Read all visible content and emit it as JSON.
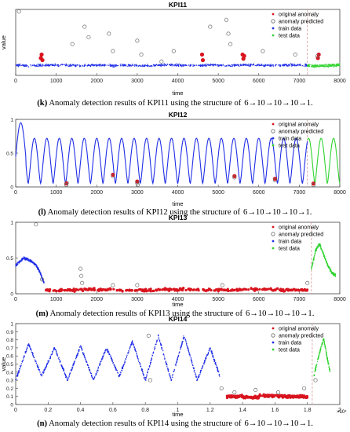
{
  "colors": {
    "train": "#1f2ee6",
    "test": "#2fd32f",
    "anomaly": "#d8141e",
    "predicted": "#6b6b6b",
    "split_line": "#d49a9a",
    "axis": "#444444"
  },
  "legend_labels": {
    "original": "original anomaly",
    "predicted": "anomaly predicted",
    "train": "train data",
    "test": "test data"
  },
  "captions": [
    {
      "tag": "(k)",
      "text": "Anomaly detection results of KPI11 using the structure of",
      "arch": "6→10→10→10→1."
    },
    {
      "tag": "(l)",
      "text": "Anomaly detection results of KPI12 using the structure of",
      "arch": "6→10→10→10→1."
    },
    {
      "tag": "(m)",
      "text": "Anomaly detection results of KPI13 using the structure of",
      "arch": "6→10→10→10→1."
    },
    {
      "tag": "(n)",
      "text": "Anomaly detection results of KPI14 using the structure of",
      "arch": "6→10→10→10→1."
    }
  ],
  "chart_data": [
    {
      "type": "scatter",
      "title": "KPI11",
      "xlabel": "time",
      "ylabel": "value",
      "xlim": [
        0,
        8000
      ],
      "ylim": [
        0,
        0.95
      ],
      "xticks": [
        "0",
        "1000",
        "2000",
        "3000",
        "4000",
        "5000",
        "6000",
        "7000",
        "8000"
      ],
      "yticks": [],
      "split_x": 7200,
      "legend": [
        "original anomaly",
        "anomaly predicted",
        "train data",
        "test data"
      ],
      "legend_position": "top-right",
      "series": [
        {
          "name": "train data",
          "x": [
            0,
            400,
            800,
            1200,
            1600,
            2000,
            2400,
            2800,
            3200,
            3600,
            4000,
            4400,
            4800,
            5200,
            5600,
            6000,
            6400,
            6800,
            7200
          ],
          "y": [
            0.15,
            0.14,
            0.15,
            0.15,
            0.14,
            0.15,
            0.14,
            0.15,
            0.14,
            0.15,
            0.15,
            0.14,
            0.15,
            0.14,
            0.15,
            0.15,
            0.14,
            0.15,
            0.15
          ]
        },
        {
          "name": "test data",
          "x": [
            7200,
            7400,
            7600,
            7800,
            8000
          ],
          "y": [
            0.14,
            0.13,
            0.14,
            0.14,
            0.15
          ]
        },
        {
          "name": "original anomaly",
          "x": [
            620,
            640,
            660,
            4600,
            4620,
            5600,
            5620,
            5640,
            7460,
            7480
          ],
          "y": [
            0.25,
            0.3,
            0.22,
            0.3,
            0.22,
            0.3,
            0.24,
            0.28,
            0.25,
            0.3
          ]
        },
        {
          "name": "anomaly predicted",
          "x": [
            80,
            1400,
            1700,
            1800,
            2300,
            2400,
            3000,
            3100,
            3600,
            3900,
            4800,
            5200,
            5250,
            5300,
            6100,
            6900,
            7450
          ],
          "y": [
            0.92,
            0.45,
            0.7,
            0.55,
            0.6,
            0.35,
            0.5,
            0.3,
            0.2,
            0.35,
            0.7,
            0.8,
            0.6,
            0.45,
            0.35,
            0.3,
            0.28
          ]
        }
      ]
    },
    {
      "type": "line",
      "title": "KPI12",
      "xlabel": "time",
      "ylabel": "",
      "xlim": [
        0,
        8000
      ],
      "ylim": [
        0,
        1
      ],
      "xticks": [
        "0",
        "1000",
        "2000",
        "3000",
        "4000",
        "5000",
        "6000",
        "7000",
        "8000"
      ],
      "yticks": [
        "0",
        "0.5",
        "1"
      ],
      "split_x": 7200,
      "legend": [
        "original anomaly",
        "anomaly predicted",
        "train data",
        "test data"
      ],
      "legend_position": "top-right",
      "periods": 26,
      "peak": 0.72,
      "trough": 0.05,
      "series": [
        {
          "name": "original anomaly",
          "x": [
            1250,
            2400,
            3000,
            5400,
            6400,
            7350
          ],
          "y": [
            0.05,
            0.18,
            0.08,
            0.16,
            0.12,
            0.05
          ]
        },
        {
          "name": "anomaly predicted",
          "x": [
            1250,
            1260,
            2400,
            3000,
            3010,
            5400,
            6400,
            7350
          ],
          "y": [
            0.03,
            0.06,
            0.16,
            0.06,
            0.03,
            0.14,
            0.1,
            0.03
          ]
        }
      ]
    },
    {
      "type": "scatter",
      "title": "KPI13",
      "xlabel": "time",
      "ylabel": "",
      "xlim": [
        0,
        8000
      ],
      "ylim": [
        0,
        1
      ],
      "xticks": [
        "0",
        "1000",
        "2000",
        "3000",
        "4000",
        "5000",
        "6000",
        "7000",
        "8000"
      ],
      "yticks": [
        "0",
        "0.5",
        "1"
      ],
      "split_x": 7300,
      "legend": [
        "original anomaly",
        "anomaly predicted",
        "train data",
        "test data"
      ],
      "legend_position": "top-right",
      "series": [
        {
          "name": "train data",
          "x": [
            0,
            100,
            200,
            300,
            400,
            500,
            600,
            700
          ],
          "y": [
            0.4,
            0.45,
            0.5,
            0.48,
            0.45,
            0.4,
            0.3,
            0.15
          ]
        },
        {
          "name": "test data",
          "x": [
            7300,
            7400,
            7500,
            7600,
            7700,
            7800,
            7900
          ],
          "y": [
            0.35,
            0.6,
            0.7,
            0.55,
            0.4,
            0.3,
            0.25
          ]
        },
        {
          "name": "original anomaly",
          "x": [
            700,
            1500,
            2500,
            3500,
            4500,
            5500,
            6500,
            7200
          ],
          "y": [
            0.05,
            0.06,
            0.05,
            0.06,
            0.05,
            0.06,
            0.05,
            0.06
          ]
        },
        {
          "name": "anomaly predicted",
          "x": [
            500,
            650,
            1600,
            1620,
            1640,
            2400,
            3000,
            5100,
            7200
          ],
          "y": [
            0.97,
            0.2,
            0.35,
            0.25,
            0.15,
            0.12,
            0.12,
            0.12,
            0.15
          ]
        }
      ]
    },
    {
      "type": "scatter",
      "title": "KPI14",
      "xlabel": "time",
      "ylabel": "value",
      "xlim": [
        0,
        2
      ],
      "ylim": [
        0,
        1
      ],
      "x_multiplier": "×10⁴",
      "xticks": [
        "0",
        "0.2",
        "0.4",
        "0.6",
        "0.8",
        "1",
        "1.2",
        "1.4",
        "1.6",
        "1.8",
        "2"
      ],
      "yticks": [
        "0",
        "0.1",
        "0.2",
        "0.3",
        "0.4",
        "0.5",
        "0.6",
        "0.7",
        "0.8",
        "0.9",
        "1"
      ],
      "split_x": 1.83,
      "legend": [
        "original anomaly",
        "anomaly predicted",
        "train data",
        "test data"
      ],
      "legend_position": "top-right",
      "series": [
        {
          "name": "train data",
          "x": [
            0,
            0.08,
            0.16,
            0.24,
            0.32,
            0.4,
            0.48,
            0.56,
            0.64,
            0.72,
            0.8,
            0.88,
            0.96,
            1.04,
            1.12,
            1.2,
            1.26
          ],
          "y": [
            0.3,
            0.75,
            0.35,
            0.7,
            0.3,
            0.72,
            0.3,
            0.7,
            0.35,
            0.78,
            0.3,
            0.85,
            0.3,
            0.85,
            0.3,
            0.7,
            0.35
          ]
        },
        {
          "name": "test data",
          "x": [
            1.84,
            1.87,
            1.9,
            1.92,
            1.94
          ],
          "y": [
            0.35,
            0.6,
            0.82,
            0.6,
            0.4
          ]
        },
        {
          "name": "original anomaly",
          "x": [
            1.3,
            1.4,
            1.5,
            1.6,
            1.7,
            1.8
          ],
          "y": [
            0.1,
            0.09,
            0.11,
            0.1,
            0.1,
            0.11
          ]
        },
        {
          "name": "anomaly predicted",
          "x": [
            0.82,
            0.83,
            1.27,
            1.35,
            1.48,
            1.62,
            1.78,
            1.85
          ],
          "y": [
            0.85,
            0.3,
            0.2,
            0.15,
            0.18,
            0.15,
            0.2,
            0.3
          ]
        }
      ]
    }
  ]
}
